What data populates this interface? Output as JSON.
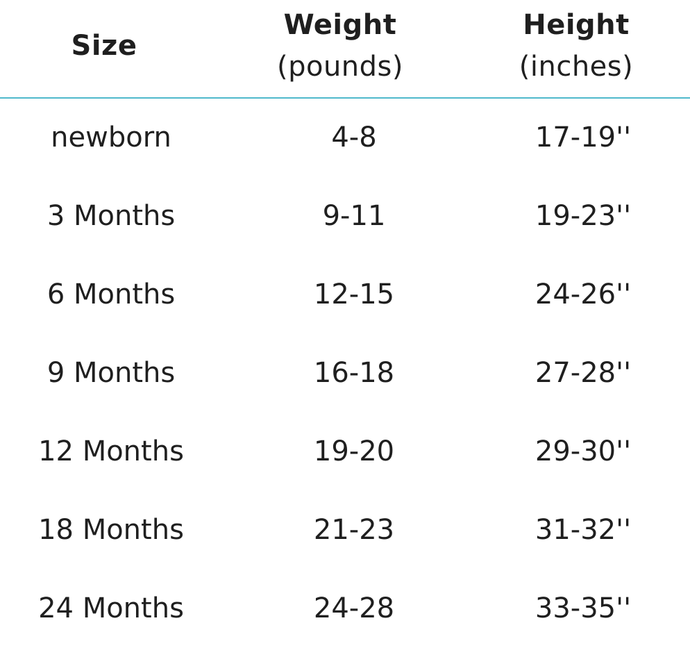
{
  "table": {
    "headers": {
      "size": [
        "Size"
      ],
      "weight": [
        "Weight",
        "(pounds)"
      ],
      "height": [
        "Height",
        "(inches)"
      ]
    },
    "rows": [
      {
        "size": "newborn",
        "weight": "4-8",
        "height": "17-19''"
      },
      {
        "size": "3 Months",
        "weight": "9-11",
        "height": "19-23''"
      },
      {
        "size": "6 Months",
        "weight": "12-15",
        "height": "24-26''"
      },
      {
        "size": "9 Months",
        "weight": "16-18",
        "height": "27-28''"
      },
      {
        "size": "12 Months",
        "weight": "19-20",
        "height": "29-30''"
      },
      {
        "size": "18 Months",
        "weight": "21-23",
        "height": "31-32''"
      },
      {
        "size": "24 Months",
        "weight": "24-28",
        "height": "33-35''"
      }
    ]
  },
  "colors": {
    "divider": "#4fb9cc",
    "text": "#1f1f1f"
  }
}
